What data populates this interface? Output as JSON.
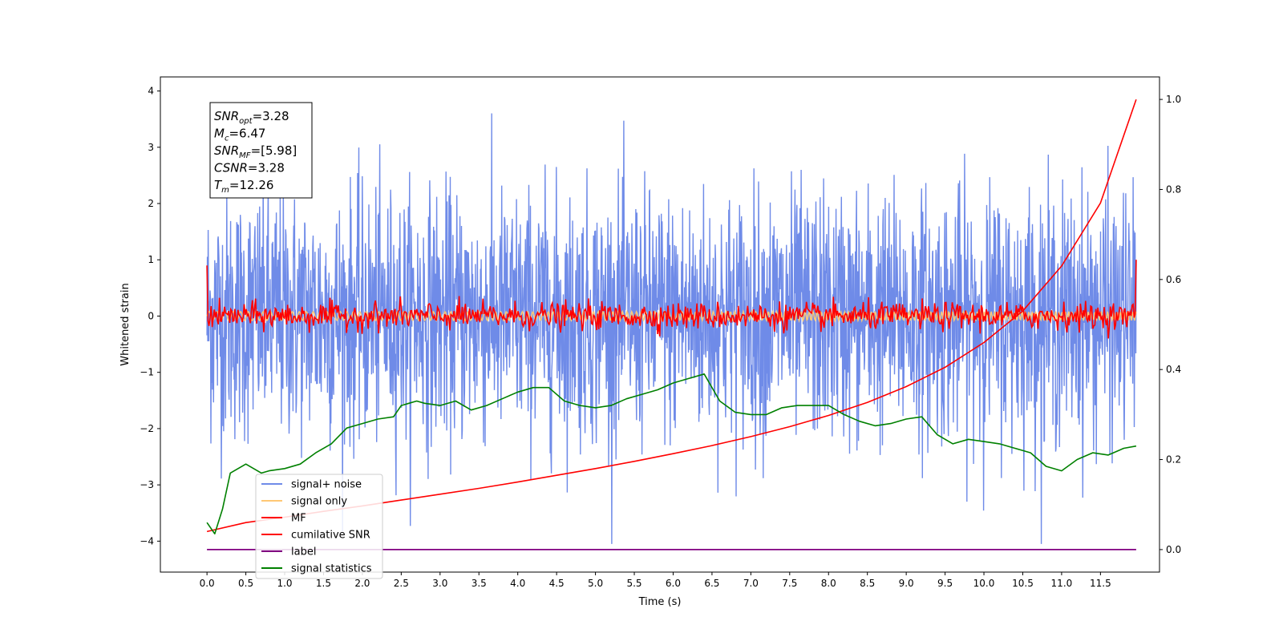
{
  "chart_data": {
    "type": "line",
    "xlabel": "Time (s)",
    "ylabel": "Whitened strain",
    "xlim": [
      -0.6,
      12.26
    ],
    "ylim_left": [
      -4.55,
      4.25
    ],
    "ylim_right": [
      -0.05,
      1.05
    ],
    "x_ticks": [
      "0.0",
      "0.5",
      "1.0",
      "1.5",
      "2.0",
      "2.5",
      "3.0",
      "3.5",
      "4.0",
      "4.5",
      "5.0",
      "5.5",
      "6.0",
      "6.5",
      "7.0",
      "7.5",
      "8.0",
      "8.5",
      "9.0",
      "9.5",
      "10.0",
      "10.5",
      "11.0",
      "11.5"
    ],
    "y_ticks_left": [
      "−4",
      "−3",
      "−2",
      "−1",
      "0",
      "1",
      "2",
      "3",
      "4"
    ],
    "y_ticks_right": [
      "0.0",
      "0.2",
      "0.4",
      "0.6",
      "0.8",
      "1.0"
    ],
    "grid": false,
    "legend_position": "lower-left",
    "annotation": {
      "lines": [
        {
          "sym": "SNR",
          "sub": "opt",
          "val": "=3.28"
        },
        {
          "sym": "M",
          "sub": "c",
          "val": "=6.47"
        },
        {
          "sym": "SNR",
          "sub": "MF",
          "val": "=[5.98]"
        },
        {
          "sym": "CSNR",
          "sub": "",
          "val": "=3.28"
        },
        {
          "sym": "T",
          "sub": "m",
          "val": "=12.26"
        }
      ]
    },
    "series": [
      {
        "name": "signal+ noise",
        "axis": "left",
        "color": "#6f8be8",
        "x_range": [
          0.0,
          11.96
        ],
        "approx_std": 1.1,
        "range": [
          -4.05,
          3.87
        ]
      },
      {
        "name": "signal only",
        "axis": "left",
        "color": "#ffc875",
        "x_range": [
          0.0,
          11.96
        ],
        "approx_amplitude": 0.08
      },
      {
        "name": "MF",
        "axis": "left",
        "color": "#ff0000",
        "x_range": [
          0.0,
          11.96
        ],
        "approx_std": 0.12,
        "edge_values": {
          "start": 0.9,
          "end": 1.0
        }
      },
      {
        "name": "cumilative SNR",
        "axis": "right",
        "color": "#ff0000",
        "x": [
          0.0,
          0.5,
          1.0,
          1.5,
          2.0,
          2.5,
          3.0,
          3.5,
          4.0,
          4.5,
          5.0,
          5.5,
          6.0,
          6.5,
          7.0,
          7.5,
          8.0,
          8.5,
          9.0,
          9.5,
          10.0,
          10.5,
          11.0,
          11.5,
          11.96
        ],
        "values": [
          0.04,
          0.06,
          0.072,
          0.085,
          0.097,
          0.11,
          0.123,
          0.136,
          0.15,
          0.165,
          0.18,
          0.196,
          0.213,
          0.231,
          0.251,
          0.273,
          0.298,
          0.327,
          0.362,
          0.405,
          0.46,
          0.53,
          0.63,
          0.77,
          1.0
        ]
      },
      {
        "name": "label",
        "axis": "right",
        "color": "#800080",
        "x": [
          0.0,
          11.96
        ],
        "values": [
          0.0,
          0.0
        ]
      },
      {
        "name": "signal statistics",
        "axis": "right",
        "color": "#008000",
        "x": [
          0.0,
          0.1,
          0.2,
          0.3,
          0.5,
          0.6,
          0.7,
          0.8,
          1.0,
          1.2,
          1.4,
          1.6,
          1.8,
          2.0,
          2.2,
          2.4,
          2.5,
          2.7,
          2.8,
          3.0,
          3.2,
          3.4,
          3.6,
          3.8,
          4.0,
          4.2,
          4.4,
          4.6,
          4.8,
          5.0,
          5.2,
          5.4,
          5.6,
          5.8,
          6.0,
          6.2,
          6.4,
          6.6,
          6.8,
          7.0,
          7.2,
          7.4,
          7.6,
          7.8,
          8.0,
          8.2,
          8.4,
          8.6,
          8.8,
          9.0,
          9.2,
          9.4,
          9.6,
          9.8,
          10.0,
          10.2,
          10.4,
          10.6,
          10.8,
          11.0,
          11.2,
          11.4,
          11.6,
          11.8,
          11.96
        ],
        "values": [
          0.06,
          0.035,
          0.09,
          0.17,
          0.19,
          0.18,
          0.17,
          0.175,
          0.18,
          0.19,
          0.215,
          0.235,
          0.27,
          0.28,
          0.29,
          0.295,
          0.32,
          0.33,
          0.325,
          0.32,
          0.33,
          0.31,
          0.32,
          0.335,
          0.35,
          0.36,
          0.36,
          0.33,
          0.32,
          0.315,
          0.32,
          0.335,
          0.345,
          0.355,
          0.37,
          0.38,
          0.39,
          0.33,
          0.305,
          0.3,
          0.3,
          0.315,
          0.32,
          0.32,
          0.32,
          0.3,
          0.285,
          0.275,
          0.28,
          0.29,
          0.295,
          0.255,
          0.235,
          0.245,
          0.24,
          0.235,
          0.225,
          0.215,
          0.185,
          0.175,
          0.2,
          0.215,
          0.21,
          0.225,
          0.23
        ]
      }
    ]
  }
}
